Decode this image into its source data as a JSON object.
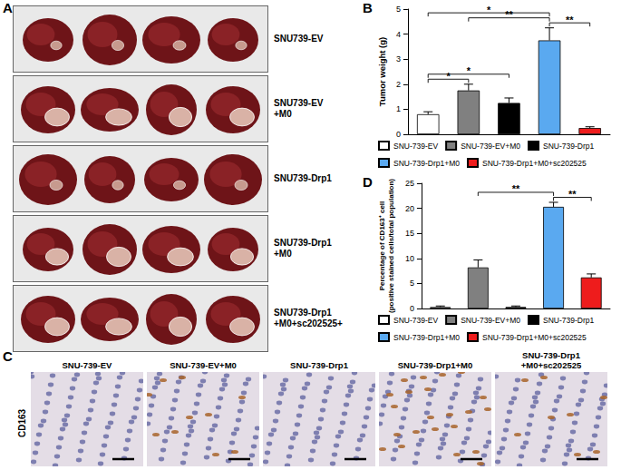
{
  "photo_panels": {
    "A": {
      "panel_label": "A",
      "row_labels": [
        "SNU739-EV",
        "SNU739-EV\n+M0",
        "SNU739-Drp1",
        "SNU739-Drp1\n+M0",
        "SNU739-Drp1\n+M0+sc202525+"
      ]
    },
    "C": {
      "panel_label": "C",
      "stain": "CD163",
      "column_labels": [
        "SNU-739-EV",
        "SNU-739-EV+M0",
        "SNU-739-Drp1",
        "SNU-739-Drp1+M0",
        "SNU-739-Drp1\n+M0+sc202525"
      ]
    }
  },
  "chart_data": [
    {
      "panel_label": "B",
      "type": "bar",
      "y_label": "Tumor weight (g)",
      "categories": [
        "SNU-739-EV",
        "SNU-739-EV+M0",
        "SNU-739-Drp1",
        "SNU-739-Drp1+M0",
        "SNU-739-Drp1+M0+sc202525"
      ],
      "values": [
        0.8,
        1.75,
        1.25,
        3.75,
        0.25
      ],
      "errors": [
        0.1,
        0.25,
        0.2,
        0.5,
        0.05
      ],
      "colors": [
        "#ffffff",
        "#808080",
        "#000000",
        "#5aa9f0",
        "#ee1c1c"
      ],
      "ylim": [
        0,
        5
      ],
      "yticks": [
        0,
        1,
        2,
        3,
        4,
        5
      ],
      "grid": false,
      "legend": "bottom",
      "tick_labels": "y",
      "annotations": [
        {
          "from": "SNU-739-EV",
          "to": "SNU-739-EV+M0",
          "label": "*"
        },
        {
          "from": "SNU-739-Drp1+M0",
          "to": "SNU-739-Drp1+M0+sc202525",
          "label": "**"
        },
        {
          "from": "SNU-739-EV",
          "to": "SNU-739-Drp1",
          "label": "*"
        },
        {
          "from": "SNU-739-EV+M0",
          "to": "SNU-739-Drp1+M0",
          "label": "**"
        },
        {
          "from": "SNU-739-EV",
          "to": "SNU-739-Drp1+M0",
          "label": "*"
        }
      ]
    },
    {
      "panel_label": "D",
      "type": "bar",
      "y_label": "Percentage of CD163⁺ cell\n(positive stained cells/total population)",
      "categories": [
        "SNU-739-EV",
        "SNU-739-EV+M0",
        "SNU-739-Drp1",
        "SNU-739-Drp1+M0",
        "SNU-739-Drp1+M0+sc202525"
      ],
      "values": [
        0.3,
        8.2,
        0.3,
        20.3,
        6.2
      ],
      "errors": [
        0.2,
        1.5,
        0.2,
        0.9,
        0.7
      ],
      "colors": [
        "#ffffff",
        "#808080",
        "#000000",
        "#5aa9f0",
        "#ee1c1c"
      ],
      "ylim": [
        0,
        25
      ],
      "yticks": [
        0,
        5,
        10,
        15,
        20,
        25
      ],
      "grid": false,
      "legend": "bottom",
      "tick_labels": "y",
      "annotations": [
        {
          "from": "SNU-739-Drp1+M0",
          "to": "SNU-739-Drp1+M0+sc202525",
          "label": "**"
        },
        {
          "from": "SNU-739-EV+M0",
          "to": "SNU-739-Drp1+M0",
          "label": "**"
        }
      ]
    }
  ]
}
